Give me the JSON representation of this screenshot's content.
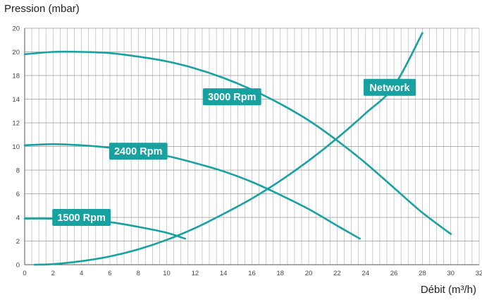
{
  "chart_data": {
    "type": "line",
    "xlabel": "Débit (m³/h)",
    "ylabel": "Pression (mbar)",
    "xlim": [
      0,
      32
    ],
    "x_ticks": [
      0,
      2,
      4,
      6,
      8,
      10,
      12,
      14,
      16,
      18,
      20,
      22,
      24,
      26,
      28,
      30,
      32
    ],
    "x_tick_labels": [
      "0",
      "2",
      "4",
      "6",
      "8",
      "10",
      "12",
      "14",
      "16",
      "18",
      "20",
      "22",
      "24",
      "26",
      "28",
      "30",
      "32"
    ],
    "y_tick_labels": [
      "0",
      "2",
      "4",
      "6",
      "8",
      "10",
      "12",
      "14",
      "18",
      "20",
      "20"
    ],
    "grid": true,
    "series": [
      {
        "name": "3000 Rpm",
        "color": "#17a1a1",
        "points": [
          [
            0,
            17.8
          ],
          [
            2,
            18.0
          ],
          [
            4,
            18.0
          ],
          [
            6,
            17.9
          ],
          [
            8,
            17.6
          ],
          [
            10,
            17.2
          ],
          [
            12,
            16.6
          ],
          [
            14,
            15.8
          ],
          [
            16,
            14.8
          ],
          [
            18,
            13.6
          ],
          [
            20,
            12.2
          ],
          [
            22,
            10.5
          ],
          [
            24,
            8.6
          ],
          [
            26,
            6.5
          ],
          [
            28,
            4.4
          ],
          [
            30,
            2.6
          ]
        ]
      },
      {
        "name": "2400 Rpm",
        "color": "#17a1a1",
        "points": [
          [
            0,
            10.1
          ],
          [
            2,
            10.2
          ],
          [
            4,
            10.1
          ],
          [
            6,
            9.9
          ],
          [
            8,
            9.6
          ],
          [
            10,
            9.2
          ],
          [
            12,
            8.6
          ],
          [
            14,
            7.9
          ],
          [
            16,
            7.0
          ],
          [
            18,
            5.9
          ],
          [
            20,
            4.7
          ],
          [
            22,
            3.3
          ],
          [
            23.6,
            2.2
          ]
        ]
      },
      {
        "name": "1500 Rpm",
        "color": "#17a1a1",
        "points": [
          [
            0,
            3.9
          ],
          [
            2,
            3.9
          ],
          [
            4,
            3.8
          ],
          [
            6,
            3.6
          ],
          [
            8,
            3.2
          ],
          [
            10,
            2.7
          ],
          [
            11.3,
            2.2
          ]
        ]
      },
      {
        "name": "Network",
        "color": "#17a1a1",
        "points": [
          [
            0.7,
            0.0
          ],
          [
            2,
            0.05
          ],
          [
            4,
            0.3
          ],
          [
            6,
            0.7
          ],
          [
            8,
            1.3
          ],
          [
            10,
            2.1
          ],
          [
            12,
            3.1
          ],
          [
            14,
            4.3
          ],
          [
            16,
            5.6
          ],
          [
            18,
            7.1
          ],
          [
            20,
            8.8
          ],
          [
            22,
            10.7
          ],
          [
            24,
            12.8
          ],
          [
            26,
            15.1
          ],
          [
            28,
            19.6
          ]
        ]
      }
    ],
    "labels": [
      {
        "text": "3000 Rpm",
        "x": 14.6,
        "y": 14.2
      },
      {
        "text": "2400 Rpm",
        "x": 8.0,
        "y": 9.6
      },
      {
        "text": "1500 Rpm",
        "x": 4.0,
        "y": 4.0
      },
      {
        "text": "Network",
        "x": 25.7,
        "y": 15.0
      }
    ]
  }
}
